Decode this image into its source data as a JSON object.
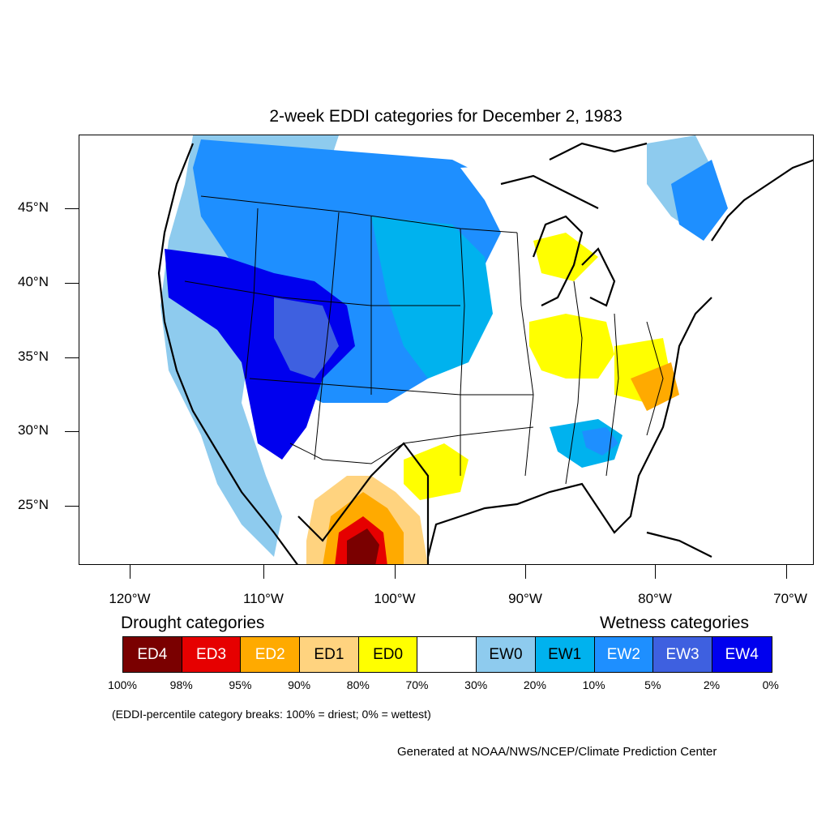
{
  "title": "2-week EDDI categories for December 2, 1983",
  "lat_labels": [
    "45°N",
    "40°N",
    "35°N",
    "30°N",
    "25°N"
  ],
  "lon_labels": [
    "120°W",
    "110°W",
    "100°W",
    "90°W",
    "80°W",
    "70°W"
  ],
  "legend": {
    "drought_title": "Drought categories",
    "wetness_title": "Wetness categories",
    "categories": [
      {
        "label": "ED4",
        "color": "#7a0000",
        "text_color": "#ffffff"
      },
      {
        "label": "ED3",
        "color": "#e60000",
        "text_color": "#ffffff"
      },
      {
        "label": "ED2",
        "color": "#ffaa00",
        "text_color": "#ffffff"
      },
      {
        "label": "ED1",
        "color": "#ffd37f",
        "text_color": "#000000"
      },
      {
        "label": "ED0",
        "color": "#ffff00",
        "text_color": "#000000"
      },
      {
        "label": "",
        "color": "#ffffff",
        "text_color": "#000000"
      },
      {
        "label": "EW0",
        "color": "#8ecbee",
        "text_color": "#000000"
      },
      {
        "label": "EW1",
        "color": "#00b2ee",
        "text_color": "#000000"
      },
      {
        "label": "EW2",
        "color": "#1e8fff",
        "text_color": "#ffffff"
      },
      {
        "label": "EW3",
        "color": "#3e60e0",
        "text_color": "#ffffff"
      },
      {
        "label": "EW4",
        "color": "#0000ee",
        "text_color": "#ffffff"
      }
    ],
    "percentiles": [
      "100%",
      "98%",
      "95%",
      "90%",
      "80%",
      "70%",
      "30%",
      "20%",
      "10%",
      "5%",
      "2%",
      "0%"
    ]
  },
  "note": "(EDDI-percentile category breaks: 100% = driest; 0% = wettest)",
  "credit": "Generated at NOAA/NWS/NCEP/Climate Prediction Center"
}
